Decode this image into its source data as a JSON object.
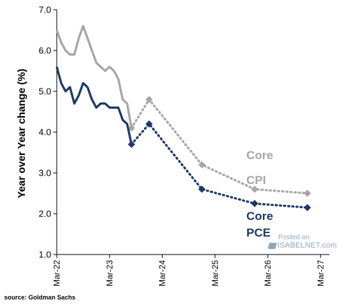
{
  "chart_data": {
    "type": "line",
    "title": "",
    "ylabel": "Year over Year change (%)",
    "xlabel": "",
    "ylim": [
      1.0,
      7.0
    ],
    "yticks": [
      "1.0",
      "2.0",
      "3.0",
      "4.0",
      "5.0",
      "6.0",
      "7.0"
    ],
    "xticks": [
      "Mar-22",
      "Mar-23",
      "Mar-24",
      "Mar-25",
      "Mar-26",
      "Mar-27"
    ],
    "xlim": [
      "2022-03",
      "2027-05"
    ],
    "series": [
      {
        "name": "Core CPI",
        "color": "#a6a6a6",
        "actual": {
          "x": [
            "2022-03",
            "2022-04",
            "2022-05",
            "2022-06",
            "2022-07",
            "2022-08",
            "2022-09",
            "2022-10",
            "2022-11",
            "2022-12",
            "2023-01",
            "2023-02",
            "2023-03",
            "2023-04",
            "2023-05",
            "2023-06",
            "2023-07",
            "2023-08"
          ],
          "y": [
            6.5,
            6.2,
            6.0,
            5.9,
            5.9,
            6.3,
            6.6,
            6.3,
            6.0,
            5.7,
            5.6,
            5.5,
            5.6,
            5.5,
            5.3,
            4.8,
            4.7,
            4.1
          ]
        },
        "forecast": {
          "x": [
            "2023-08",
            "2023-12",
            "2024-12",
            "2025-12",
            "2026-12"
          ],
          "y": [
            4.1,
            4.8,
            3.2,
            2.6,
            2.5
          ]
        }
      },
      {
        "name": "Core PCE",
        "color": "#1f3864",
        "actual": {
          "x": [
            "2022-03",
            "2022-04",
            "2022-05",
            "2022-06",
            "2022-07",
            "2022-08",
            "2022-09",
            "2022-10",
            "2022-11",
            "2022-12",
            "2023-01",
            "2023-02",
            "2023-03",
            "2023-04",
            "2023-05",
            "2023-06",
            "2023-07",
            "2023-08"
          ],
          "y": [
            5.6,
            5.2,
            5.0,
            5.1,
            4.7,
            4.9,
            5.2,
            5.1,
            4.8,
            4.6,
            4.7,
            4.7,
            4.6,
            4.6,
            4.6,
            4.3,
            4.2,
            3.7
          ]
        },
        "forecast": {
          "x": [
            "2023-08",
            "2023-12",
            "2024-12",
            "2025-12",
            "2026-12"
          ],
          "y": [
            3.7,
            4.2,
            2.6,
            2.25,
            2.15
          ]
        }
      }
    ],
    "series_labels": [
      {
        "lines": [
          "Core",
          "CPI"
        ],
        "color": "#a6a6a6"
      },
      {
        "lines": [
          "Core",
          "PCE"
        ],
        "color": "#1f3864"
      }
    ]
  },
  "source_text": "source: Goldman Sachs",
  "watermark": {
    "line1": "Posted on",
    "line2": "ISABELNET.com"
  }
}
